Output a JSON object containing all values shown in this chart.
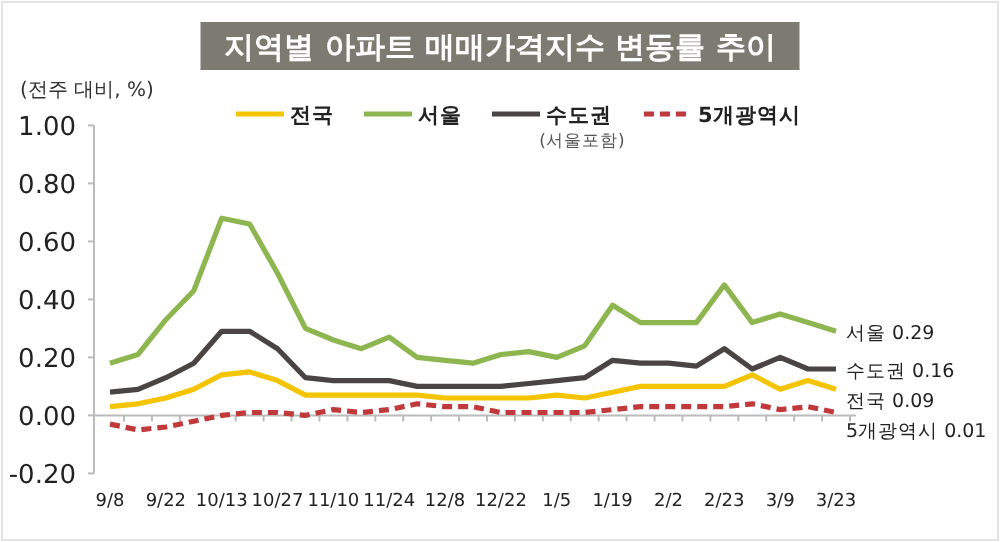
{
  "chart_data": {
    "type": "line",
    "title": "지역별 아파트 매매가격지수 변동률 추이",
    "ylabel": "(전주 대비, %)",
    "categories": [
      "9/8",
      null,
      "9/22",
      null,
      "10/13",
      null,
      "10/27",
      null,
      "11/10",
      null,
      "11/24",
      null,
      "12/8",
      null,
      "12/22",
      null,
      "1/5",
      null,
      "1/19",
      null,
      "2/2",
      null,
      "2/23",
      null,
      "3/9",
      null,
      "3/23"
    ],
    "series": [
      {
        "name": "전국",
        "color": "#f5c400",
        "values": [
          0.03,
          0.04,
          0.06,
          0.09,
          0.14,
          0.15,
          0.12,
          0.07,
          0.07,
          0.07,
          0.07,
          0.07,
          0.06,
          0.06,
          0.06,
          0.06,
          0.07,
          0.06,
          0.08,
          0.1,
          0.1,
          0.1,
          0.1,
          0.14,
          0.09,
          0.12,
          0.09
        ]
      },
      {
        "name": "서울",
        "color": "#8db650",
        "values": [
          0.18,
          0.21,
          0.33,
          0.43,
          0.68,
          0.66,
          0.49,
          0.3,
          0.26,
          0.23,
          0.27,
          0.2,
          0.19,
          0.18,
          0.21,
          0.22,
          0.2,
          0.24,
          0.38,
          0.32,
          0.32,
          0.32,
          0.45,
          0.32,
          0.35,
          0.32,
          0.29
        ]
      },
      {
        "name": "수도권 (서울포함)",
        "color": "#4a4443",
        "values": [
          0.08,
          0.09,
          0.13,
          0.18,
          0.29,
          0.29,
          0.23,
          0.13,
          0.12,
          0.12,
          0.12,
          0.1,
          0.1,
          0.1,
          0.1,
          0.11,
          0.12,
          0.13,
          0.19,
          0.18,
          0.18,
          0.17,
          0.23,
          0.16,
          0.2,
          0.16,
          0.16
        ]
      },
      {
        "name": "5개광역시",
        "color": "#c0393b",
        "line_style": "dashed",
        "values": [
          -0.03,
          -0.05,
          -0.04,
          -0.02,
          0.0,
          0.01,
          0.01,
          0.0,
          0.02,
          0.01,
          0.02,
          0.04,
          0.03,
          0.03,
          0.01,
          0.01,
          0.01,
          0.01,
          0.02,
          0.03,
          0.03,
          0.03,
          0.03,
          0.04,
          0.02,
          0.03,
          0.01
        ]
      }
    ],
    "ylim": [
      -0.2,
      1.0
    ],
    "yticks": [
      {
        "value": -0.2,
        "label": "-0.20"
      },
      {
        "value": 0,
        "label": "0.00"
      },
      {
        "value": 0.2,
        "label": "0.20"
      },
      {
        "value": 0.4,
        "label": "0.40"
      },
      {
        "value": 0.6,
        "label": "0.60"
      },
      {
        "value": 0.8,
        "label": "0.80"
      },
      {
        "value": 1.0,
        "label": "1.00"
      }
    ],
    "legend": "top",
    "marker": "none",
    "line_style": "solid",
    "annotations": [
      {
        "text": "서울 0.29",
        "x": "3/23",
        "y": 0.29
      },
      {
        "text": "수도권 0.16",
        "x": "3/23",
        "y": 0.16
      },
      {
        "text": "전국 0.09",
        "x": "3/23",
        "y": 0.09
      },
      {
        "text": "5개광역시 0.01",
        "x": "3/23",
        "y": 0.01
      }
    ]
  }
}
